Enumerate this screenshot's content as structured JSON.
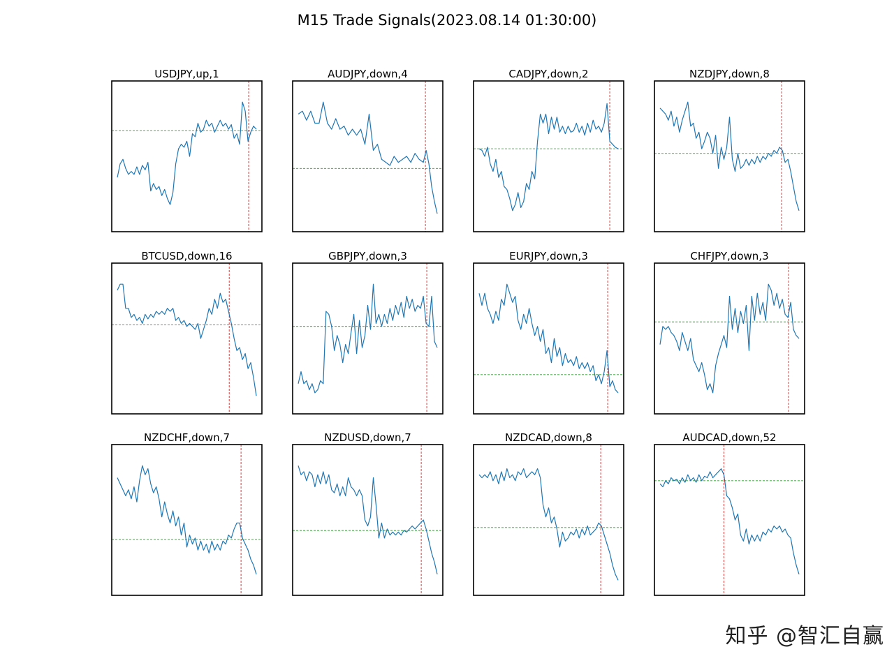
{
  "figure": {
    "title": "M15 Trade Signals(2023.08.14 01:30:00)",
    "watermark": "知乎 @智汇自赢",
    "colors": {
      "line": "#1f77b4",
      "threshold": "#2ca02c",
      "signal": "#d62728",
      "frame": "#000000"
    }
  },
  "chart_data": [
    {
      "type": "line",
      "title": "USDJPY,up,1",
      "threshold": 0.67,
      "signal_x": 0.945,
      "x": [
        0,
        0.02,
        0.04,
        0.06,
        0.08,
        0.1,
        0.12,
        0.14,
        0.16,
        0.18,
        0.2,
        0.22,
        0.24,
        0.26,
        0.28,
        0.3,
        0.32,
        0.34,
        0.36,
        0.38,
        0.4,
        0.42,
        0.44,
        0.46,
        0.48,
        0.5,
        0.52,
        0.54,
        0.56,
        0.58,
        0.6,
        0.62,
        0.64,
        0.66,
        0.68,
        0.7,
        0.72,
        0.74,
        0.76,
        0.78,
        0.8,
        0.82,
        0.84,
        0.86,
        0.88,
        0.9,
        0.92,
        0.94,
        0.96,
        0.98,
        1.0
      ],
      "y": [
        0.36,
        0.45,
        0.48,
        0.42,
        0.38,
        0.4,
        0.38,
        0.43,
        0.38,
        0.44,
        0.41,
        0.46,
        0.27,
        0.32,
        0.28,
        0.3,
        0.24,
        0.28,
        0.22,
        0.18,
        0.26,
        0.45,
        0.55,
        0.58,
        0.56,
        0.6,
        0.5,
        0.65,
        0.63,
        0.72,
        0.66,
        0.68,
        0.74,
        0.7,
        0.72,
        0.66,
        0.7,
        0.74,
        0.7,
        0.72,
        0.68,
        0.71,
        0.62,
        0.65,
        0.58,
        0.86,
        0.8,
        0.6,
        0.66,
        0.7,
        0.68
      ]
    },
    {
      "type": "line",
      "title": "AUDJPY,down,4",
      "threshold": 0.42,
      "signal_x": 0.915,
      "x": [
        0,
        0.03,
        0.06,
        0.09,
        0.12,
        0.15,
        0.18,
        0.21,
        0.24,
        0.27,
        0.3,
        0.33,
        0.36,
        0.39,
        0.42,
        0.45,
        0.48,
        0.51,
        0.54,
        0.57,
        0.6,
        0.63,
        0.66,
        0.69,
        0.72,
        0.75,
        0.78,
        0.81,
        0.84,
        0.87,
        0.9,
        0.92,
        0.94,
        0.96,
        0.98,
        1.0
      ],
      "y": [
        0.78,
        0.8,
        0.74,
        0.8,
        0.72,
        0.72,
        0.86,
        0.72,
        0.68,
        0.75,
        0.68,
        0.7,
        0.64,
        0.68,
        0.64,
        0.68,
        0.58,
        0.78,
        0.54,
        0.58,
        0.48,
        0.46,
        0.44,
        0.5,
        0.46,
        0.48,
        0.5,
        0.46,
        0.52,
        0.48,
        0.46,
        0.54,
        0.45,
        0.3,
        0.2,
        0.12
      ]
    },
    {
      "type": "line",
      "title": "CADJPY,down,2",
      "threshold": 0.55,
      "signal_x": 0.94,
      "x": [
        0,
        0.02,
        0.04,
        0.06,
        0.08,
        0.1,
        0.12,
        0.14,
        0.16,
        0.18,
        0.2,
        0.22,
        0.24,
        0.26,
        0.28,
        0.3,
        0.32,
        0.34,
        0.36,
        0.38,
        0.4,
        0.42,
        0.44,
        0.46,
        0.48,
        0.5,
        0.52,
        0.54,
        0.56,
        0.58,
        0.6,
        0.62,
        0.64,
        0.66,
        0.68,
        0.7,
        0.72,
        0.74,
        0.76,
        0.78,
        0.8,
        0.82,
        0.84,
        0.86,
        0.88,
        0.9,
        0.92,
        0.94,
        0.96,
        0.98,
        1.0
      ],
      "y": [
        0.55,
        0.54,
        0.5,
        0.56,
        0.45,
        0.4,
        0.48,
        0.36,
        0.4,
        0.3,
        0.28,
        0.22,
        0.14,
        0.18,
        0.26,
        0.16,
        0.2,
        0.32,
        0.28,
        0.4,
        0.35,
        0.6,
        0.78,
        0.72,
        0.78,
        0.65,
        0.76,
        0.68,
        0.76,
        0.66,
        0.7,
        0.65,
        0.7,
        0.66,
        0.67,
        0.72,
        0.66,
        0.7,
        0.64,
        0.72,
        0.66,
        0.74,
        0.68,
        0.7,
        0.66,
        0.72,
        0.85,
        0.6,
        0.58,
        0.56,
        0.55
      ]
    },
    {
      "type": "line",
      "title": "NZDJPY,down,8",
      "threshold": 0.52,
      "signal_x": 0.875,
      "x": [
        0,
        0.02,
        0.04,
        0.06,
        0.08,
        0.1,
        0.12,
        0.14,
        0.16,
        0.18,
        0.2,
        0.22,
        0.24,
        0.26,
        0.28,
        0.3,
        0.32,
        0.34,
        0.36,
        0.38,
        0.4,
        0.42,
        0.44,
        0.46,
        0.48,
        0.5,
        0.52,
        0.54,
        0.56,
        0.58,
        0.6,
        0.62,
        0.64,
        0.66,
        0.68,
        0.7,
        0.72,
        0.74,
        0.76,
        0.78,
        0.8,
        0.82,
        0.84,
        0.86,
        0.88,
        0.9,
        0.92,
        0.94,
        0.96,
        0.98,
        1.0
      ],
      "y": [
        0.82,
        0.8,
        0.78,
        0.74,
        0.8,
        0.7,
        0.76,
        0.66,
        0.74,
        0.8,
        0.86,
        0.7,
        0.72,
        0.62,
        0.66,
        0.55,
        0.6,
        0.66,
        0.62,
        0.52,
        0.64,
        0.42,
        0.56,
        0.48,
        0.56,
        0.76,
        0.48,
        0.4,
        0.52,
        0.42,
        0.44,
        0.48,
        0.44,
        0.48,
        0.45,
        0.5,
        0.46,
        0.5,
        0.48,
        0.52,
        0.5,
        0.54,
        0.52,
        0.56,
        0.54,
        0.46,
        0.48,
        0.4,
        0.3,
        0.2,
        0.14
      ]
    },
    {
      "type": "line",
      "title": "BTCUSD,down,16",
      "threshold": 0.59,
      "signal_x": 0.805,
      "x": [
        0,
        0.02,
        0.04,
        0.06,
        0.08,
        0.1,
        0.12,
        0.14,
        0.16,
        0.18,
        0.2,
        0.22,
        0.24,
        0.26,
        0.28,
        0.3,
        0.32,
        0.34,
        0.36,
        0.38,
        0.4,
        0.42,
        0.44,
        0.46,
        0.48,
        0.5,
        0.52,
        0.54,
        0.56,
        0.58,
        0.6,
        0.62,
        0.64,
        0.66,
        0.68,
        0.7,
        0.72,
        0.74,
        0.76,
        0.78,
        0.8,
        0.82,
        0.84,
        0.86,
        0.88,
        0.9,
        0.92,
        0.94,
        0.96,
        0.98,
        1.0
      ],
      "y": [
        0.82,
        0.86,
        0.86,
        0.7,
        0.7,
        0.64,
        0.66,
        0.62,
        0.64,
        0.6,
        0.66,
        0.63,
        0.66,
        0.64,
        0.68,
        0.66,
        0.68,
        0.66,
        0.7,
        0.68,
        0.7,
        0.62,
        0.64,
        0.6,
        0.62,
        0.58,
        0.6,
        0.58,
        0.56,
        0.6,
        0.5,
        0.56,
        0.62,
        0.7,
        0.66,
        0.76,
        0.7,
        0.8,
        0.74,
        0.76,
        0.68,
        0.6,
        0.5,
        0.42,
        0.44,
        0.36,
        0.4,
        0.3,
        0.34,
        0.24,
        0.12
      ]
    },
    {
      "type": "line",
      "title": "GBPJPY,down,3",
      "threshold": 0.58,
      "signal_x": 0.925,
      "x": [
        0,
        0.02,
        0.04,
        0.06,
        0.08,
        0.1,
        0.12,
        0.14,
        0.16,
        0.18,
        0.2,
        0.22,
        0.24,
        0.26,
        0.28,
        0.3,
        0.32,
        0.34,
        0.36,
        0.38,
        0.4,
        0.42,
        0.44,
        0.46,
        0.48,
        0.5,
        0.52,
        0.54,
        0.56,
        0.58,
        0.6,
        0.62,
        0.64,
        0.66,
        0.68,
        0.7,
        0.72,
        0.74,
        0.76,
        0.78,
        0.8,
        0.82,
        0.84,
        0.86,
        0.88,
        0.9,
        0.92,
        0.94,
        0.96,
        0.98,
        1.0
      ],
      "y": [
        0.2,
        0.28,
        0.2,
        0.22,
        0.16,
        0.2,
        0.14,
        0.16,
        0.22,
        0.2,
        0.68,
        0.66,
        0.58,
        0.42,
        0.52,
        0.46,
        0.34,
        0.46,
        0.4,
        0.54,
        0.66,
        0.4,
        0.62,
        0.44,
        0.52,
        0.72,
        0.56,
        0.86,
        0.6,
        0.66,
        0.58,
        0.66,
        0.6,
        0.7,
        0.62,
        0.72,
        0.66,
        0.74,
        0.64,
        0.78,
        0.7,
        0.76,
        0.68,
        0.72,
        0.7,
        0.78,
        0.6,
        0.58,
        0.78,
        0.48,
        0.44
      ]
    },
    {
      "type": "line",
      "title": "EURJPY,down,3",
      "threshold": 0.26,
      "signal_x": 0.925,
      "x": [
        0,
        0.02,
        0.04,
        0.06,
        0.08,
        0.1,
        0.12,
        0.14,
        0.16,
        0.18,
        0.2,
        0.22,
        0.24,
        0.26,
        0.28,
        0.3,
        0.32,
        0.34,
        0.36,
        0.38,
        0.4,
        0.42,
        0.44,
        0.46,
        0.48,
        0.5,
        0.52,
        0.54,
        0.56,
        0.58,
        0.6,
        0.62,
        0.64,
        0.66,
        0.68,
        0.7,
        0.72,
        0.74,
        0.76,
        0.78,
        0.8,
        0.82,
        0.84,
        0.86,
        0.88,
        0.9,
        0.92,
        0.94,
        0.96,
        0.98,
        1.0
      ],
      "y": [
        0.8,
        0.72,
        0.8,
        0.7,
        0.66,
        0.6,
        0.68,
        0.62,
        0.76,
        0.72,
        0.86,
        0.8,
        0.74,
        0.78,
        0.62,
        0.56,
        0.66,
        0.6,
        0.7,
        0.6,
        0.52,
        0.58,
        0.48,
        0.56,
        0.4,
        0.44,
        0.34,
        0.5,
        0.38,
        0.44,
        0.32,
        0.4,
        0.34,
        0.36,
        0.32,
        0.38,
        0.3,
        0.34,
        0.3,
        0.34,
        0.28,
        0.32,
        0.22,
        0.26,
        0.2,
        0.28,
        0.42,
        0.18,
        0.22,
        0.16,
        0.14
      ]
    },
    {
      "type": "line",
      "title": "CHFJPY,down,3",
      "threshold": 0.61,
      "signal_x": 0.925,
      "x": [
        0,
        0.02,
        0.04,
        0.06,
        0.08,
        0.1,
        0.12,
        0.14,
        0.16,
        0.18,
        0.2,
        0.22,
        0.24,
        0.26,
        0.28,
        0.3,
        0.32,
        0.34,
        0.36,
        0.38,
        0.4,
        0.42,
        0.44,
        0.46,
        0.48,
        0.5,
        0.52,
        0.54,
        0.56,
        0.58,
        0.6,
        0.62,
        0.64,
        0.66,
        0.68,
        0.7,
        0.72,
        0.74,
        0.76,
        0.78,
        0.8,
        0.82,
        0.84,
        0.86,
        0.88,
        0.9,
        0.92,
        0.94,
        0.96,
        0.98,
        1.0
      ],
      "y": [
        0.46,
        0.58,
        0.56,
        0.58,
        0.54,
        0.52,
        0.48,
        0.42,
        0.54,
        0.48,
        0.42,
        0.5,
        0.36,
        0.32,
        0.28,
        0.34,
        0.26,
        0.16,
        0.2,
        0.14,
        0.32,
        0.4,
        0.46,
        0.52,
        0.44,
        0.78,
        0.56,
        0.7,
        0.54,
        0.68,
        0.6,
        0.72,
        0.42,
        0.78,
        0.62,
        0.8,
        0.66,
        0.74,
        0.62,
        0.86,
        0.82,
        0.72,
        0.8,
        0.7,
        0.76,
        0.66,
        0.64,
        0.74,
        0.56,
        0.52,
        0.5
      ]
    },
    {
      "type": "line",
      "title": "NZDCHF,down,7",
      "threshold": 0.37,
      "signal_x": 0.89,
      "x": [
        0,
        0.02,
        0.04,
        0.06,
        0.08,
        0.1,
        0.12,
        0.14,
        0.16,
        0.18,
        0.2,
        0.22,
        0.24,
        0.26,
        0.28,
        0.3,
        0.32,
        0.34,
        0.36,
        0.38,
        0.4,
        0.42,
        0.44,
        0.46,
        0.48,
        0.5,
        0.52,
        0.54,
        0.56,
        0.58,
        0.6,
        0.62,
        0.64,
        0.66,
        0.68,
        0.7,
        0.72,
        0.74,
        0.76,
        0.78,
        0.8,
        0.82,
        0.84,
        0.86,
        0.88,
        0.9,
        0.92,
        0.94,
        0.96,
        0.98,
        1.0
      ],
      "y": [
        0.78,
        0.74,
        0.7,
        0.66,
        0.7,
        0.64,
        0.72,
        0.62,
        0.76,
        0.86,
        0.8,
        0.84,
        0.74,
        0.68,
        0.72,
        0.64,
        0.52,
        0.62,
        0.54,
        0.48,
        0.56,
        0.46,
        0.52,
        0.4,
        0.48,
        0.32,
        0.4,
        0.34,
        0.38,
        0.3,
        0.36,
        0.3,
        0.34,
        0.28,
        0.36,
        0.3,
        0.34,
        0.3,
        0.36,
        0.34,
        0.4,
        0.38,
        0.44,
        0.48,
        0.48,
        0.38,
        0.34,
        0.3,
        0.24,
        0.2,
        0.14
      ]
    },
    {
      "type": "line",
      "title": "NZDUSD,down,7",
      "threshold": 0.43,
      "signal_x": 0.885,
      "x": [
        0,
        0.02,
        0.04,
        0.06,
        0.08,
        0.1,
        0.12,
        0.14,
        0.16,
        0.18,
        0.2,
        0.22,
        0.24,
        0.26,
        0.28,
        0.3,
        0.32,
        0.34,
        0.36,
        0.38,
        0.4,
        0.42,
        0.44,
        0.46,
        0.48,
        0.5,
        0.52,
        0.54,
        0.56,
        0.58,
        0.6,
        0.62,
        0.64,
        0.66,
        0.68,
        0.7,
        0.72,
        0.74,
        0.76,
        0.78,
        0.8,
        0.82,
        0.84,
        0.86,
        0.88,
        0.9,
        0.92,
        0.94,
        0.96,
        0.98,
        1.0
      ],
      "y": [
        0.86,
        0.8,
        0.82,
        0.76,
        0.82,
        0.8,
        0.72,
        0.8,
        0.74,
        0.82,
        0.74,
        0.8,
        0.7,
        0.68,
        0.74,
        0.66,
        0.72,
        0.66,
        0.78,
        0.72,
        0.7,
        0.66,
        0.7,
        0.66,
        0.5,
        0.46,
        0.52,
        0.78,
        0.6,
        0.38,
        0.48,
        0.38,
        0.44,
        0.4,
        0.42,
        0.4,
        0.42,
        0.4,
        0.43,
        0.42,
        0.44,
        0.46,
        0.44,
        0.46,
        0.48,
        0.5,
        0.44,
        0.36,
        0.28,
        0.22,
        0.14
      ]
    },
    {
      "type": "line",
      "title": "NZDCAD,down,8",
      "threshold": 0.45,
      "signal_x": 0.875,
      "x": [
        0,
        0.02,
        0.04,
        0.06,
        0.08,
        0.1,
        0.12,
        0.14,
        0.16,
        0.18,
        0.2,
        0.22,
        0.24,
        0.26,
        0.28,
        0.3,
        0.32,
        0.34,
        0.36,
        0.38,
        0.4,
        0.42,
        0.44,
        0.46,
        0.48,
        0.5,
        0.52,
        0.54,
        0.56,
        0.58,
        0.6,
        0.62,
        0.64,
        0.66,
        0.68,
        0.7,
        0.72,
        0.74,
        0.76,
        0.78,
        0.8,
        0.82,
        0.84,
        0.86,
        0.88,
        0.9,
        0.92,
        0.94,
        0.96,
        0.98,
        1.0
      ],
      "y": [
        0.8,
        0.78,
        0.8,
        0.78,
        0.82,
        0.76,
        0.8,
        0.74,
        0.82,
        0.76,
        0.84,
        0.78,
        0.8,
        0.76,
        0.82,
        0.8,
        0.84,
        0.78,
        0.8,
        0.82,
        0.8,
        0.84,
        0.78,
        0.6,
        0.52,
        0.58,
        0.48,
        0.52,
        0.44,
        0.32,
        0.42,
        0.36,
        0.38,
        0.42,
        0.4,
        0.44,
        0.38,
        0.44,
        0.4,
        0.46,
        0.4,
        0.42,
        0.44,
        0.48,
        0.46,
        0.4,
        0.34,
        0.28,
        0.2,
        0.14,
        0.1
      ]
    },
    {
      "type": "line",
      "title": "AUDCAD,down,52",
      "threshold": 0.76,
      "signal_x": 0.46,
      "x": [
        0,
        0.02,
        0.04,
        0.06,
        0.08,
        0.1,
        0.12,
        0.14,
        0.16,
        0.18,
        0.2,
        0.22,
        0.24,
        0.26,
        0.28,
        0.3,
        0.32,
        0.34,
        0.36,
        0.38,
        0.4,
        0.42,
        0.44,
        0.46,
        0.48,
        0.5,
        0.52,
        0.54,
        0.56,
        0.58,
        0.6,
        0.62,
        0.64,
        0.66,
        0.68,
        0.7,
        0.72,
        0.74,
        0.76,
        0.78,
        0.8,
        0.82,
        0.84,
        0.86,
        0.88,
        0.9,
        0.92,
        0.94,
        0.96,
        0.98,
        1.0
      ],
      "y": [
        0.74,
        0.72,
        0.76,
        0.74,
        0.78,
        0.76,
        0.77,
        0.74,
        0.78,
        0.75,
        0.8,
        0.76,
        0.78,
        0.75,
        0.8,
        0.76,
        0.79,
        0.78,
        0.82,
        0.78,
        0.8,
        0.82,
        0.84,
        0.8,
        0.66,
        0.64,
        0.58,
        0.5,
        0.54,
        0.4,
        0.36,
        0.44,
        0.34,
        0.4,
        0.36,
        0.4,
        0.36,
        0.42,
        0.4,
        0.44,
        0.42,
        0.46,
        0.44,
        0.46,
        0.42,
        0.44,
        0.4,
        0.38,
        0.28,
        0.2,
        0.14
      ]
    }
  ]
}
